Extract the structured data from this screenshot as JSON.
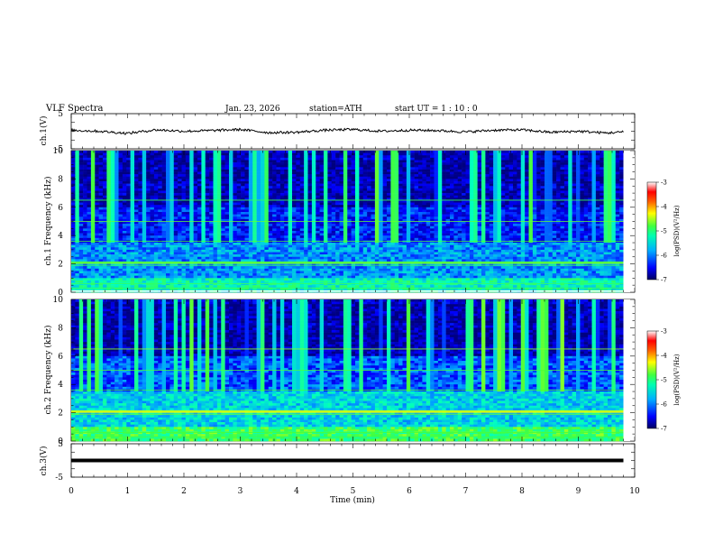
{
  "header": {
    "title": "VLF Spectra",
    "date": "Jan. 23, 2026",
    "station": "station=ATH",
    "start_ut": "start UT =   1 : 10 : 0"
  },
  "chart_data": [
    {
      "type": "line",
      "panel": "ch1-waveform",
      "ylabel": "ch.1(V)",
      "ylim": [
        -5,
        5
      ],
      "yticks": [
        "5",
        "-5"
      ],
      "xlim": [
        0,
        10
      ],
      "x_values_min": [
        0,
        0.5,
        1,
        1.5,
        2,
        2.5,
        3,
        3.5,
        4,
        4.5,
        5,
        5.5,
        6,
        6.5,
        7,
        7.5,
        8,
        8.5,
        9,
        9.5,
        9.8
      ],
      "y_values_V": [
        0.3,
        0,
        -0.6,
        0.4,
        0,
        0.2,
        0.5,
        -0.4,
        -0.3,
        0.3,
        0.5,
        0,
        0.3,
        0.2,
        -0.2,
        0.3,
        0.4,
        -0.3,
        0,
        -0.5,
        -0.2
      ],
      "color": "#000000"
    },
    {
      "type": "heatmap",
      "panel": "ch1-spectrogram",
      "ylabel": "ch.1 Frequency (kHz)",
      "xlim": [
        0,
        10
      ],
      "ylim_kHz": [
        0,
        10
      ],
      "yticks": [
        "0",
        "2",
        "4",
        "6",
        "8",
        "10"
      ],
      "data_extent_min": [
        0,
        9.8
      ],
      "colorbar": {
        "label": "log(PSD)(V²/Hz)",
        "range": [
          -7,
          -3
        ],
        "ticks": [
          "-3",
          "-4",
          "-5",
          "-6",
          "-7"
        ]
      }
    },
    {
      "type": "heatmap",
      "panel": "ch2-spectrogram",
      "ylabel": "ch.2 Frequency (kHz)",
      "xlim": [
        0,
        10
      ],
      "ylim_kHz": [
        0,
        10
      ],
      "yticks": [
        "0",
        "2",
        "4",
        "6",
        "8",
        "10"
      ],
      "data_extent_min": [
        0,
        9.8
      ],
      "colorbar": {
        "label": "log(PSD)(V²/Hz)",
        "range": [
          -7,
          -3
        ],
        "ticks": [
          "-3",
          "-4",
          "-5",
          "-6",
          "-7"
        ]
      }
    },
    {
      "type": "line",
      "panel": "ch3-waveform",
      "ylabel": "ch.3(V)",
      "ylim": [
        -5,
        5
      ],
      "yticks": [
        "5",
        "-5"
      ],
      "xlim": [
        0,
        10
      ],
      "x_values_min": [
        0,
        9.8
      ],
      "y_values_V": [
        0,
        0
      ],
      "color": "#000000"
    }
  ],
  "xaxis": {
    "label": "Time (min)",
    "ticks": [
      "0",
      "1",
      "2",
      "3",
      "4",
      "5",
      "6",
      "7",
      "8",
      "9",
      "10"
    ]
  },
  "colors": {
    "colormap": [
      "#000080",
      "#0000ff",
      "#00a0ff",
      "#00ffc0",
      "#40ff40",
      "#ffff00",
      "#ff8000",
      "#ff0000",
      "#ffffff"
    ]
  }
}
